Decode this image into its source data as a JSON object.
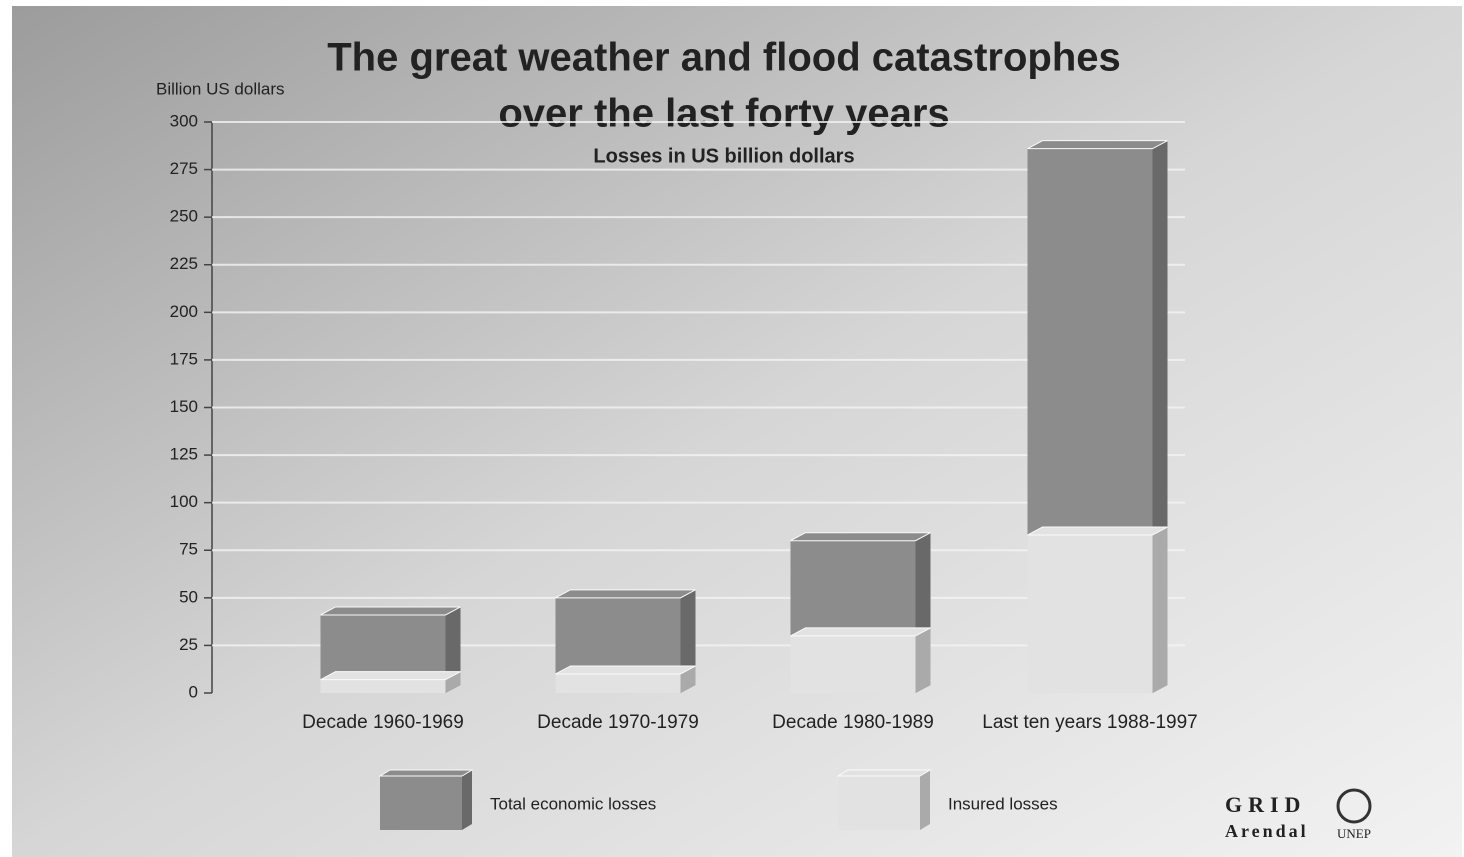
{
  "chart_data": {
    "type": "bar",
    "title": [
      "The great weather and flood catastrophes",
      "over the last forty years"
    ],
    "subtitle": "Losses in US billion dollars",
    "y_axis_label": "Billion US dollars",
    "categories": [
      "Decade 1960-1969",
      "Decade 1970-1979",
      "Decade 1980-1989",
      "Last ten years 1988-1997"
    ],
    "series": [
      {
        "name": "Total economic losses",
        "color": "#8c8c8c",
        "values": [
          41,
          50,
          80,
          286
        ]
      },
      {
        "name": "Insured losses",
        "color": "#e2e2e2",
        "values": [
          7,
          10,
          30,
          83
        ]
      }
    ],
    "ylim": [
      0,
      300
    ],
    "yticks": [
      0,
      25,
      50,
      75,
      100,
      125,
      150,
      175,
      200,
      225,
      250,
      275,
      300
    ],
    "grid": true,
    "credits": [
      "GRID",
      "Arendal",
      "UNEP"
    ]
  }
}
